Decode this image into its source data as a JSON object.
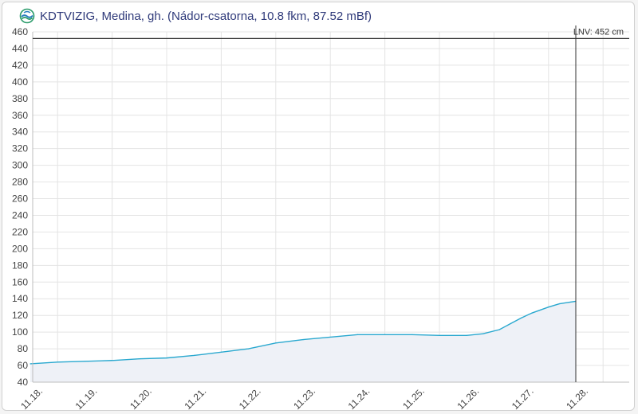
{
  "header": {
    "title": "KDTVIZIG, Medina, gh. (Nádor-csatorna, 10.8 fkm, 87.52 mBf)",
    "logo_icon": "kdtvizig-logo-icon"
  },
  "chart_data": {
    "type": "area",
    "title": "KDTVIZIG, Medina, gh. (Nádor-csatorna, 10.8 fkm, 87.52 mBf)",
    "xlabel": "",
    "ylabel": "",
    "x_ticks": [
      "11.18.",
      "11.19.",
      "11.20.",
      "11.21.",
      "11.22.",
      "11.23.",
      "11.24.",
      "11.25.",
      "11.26.",
      "11.27.",
      "11.28."
    ],
    "xlim": [
      0,
      10.8
    ],
    "ylim": [
      40,
      460
    ],
    "y_ticks": [
      40,
      60,
      80,
      100,
      120,
      140,
      160,
      180,
      200,
      220,
      240,
      260,
      280,
      300,
      320,
      340,
      360,
      380,
      400,
      420,
      440,
      460
    ],
    "grid": true,
    "series": [
      {
        "x": [
          0,
          0.5,
          1,
          1.5,
          2,
          2.5,
          3,
          3.5,
          4,
          4.5,
          5,
          5.5,
          6,
          6.5,
          7,
          7.5,
          8,
          8.3,
          8.6,
          8.8,
          9,
          9.2,
          9.5,
          9.7,
          9.9,
          10
        ],
        "y": [
          62,
          64,
          65,
          66,
          68,
          69,
          72,
          76,
          80,
          87,
          91,
          94,
          97,
          97,
          97,
          96,
          96,
          98,
          103,
          110,
          117,
          123,
          130,
          134,
          136,
          137
        ],
        "color": "#29a8cf",
        "fill": "#eef1f7"
      }
    ],
    "annotations": [
      {
        "type": "hline",
        "y": 452,
        "label": "LNV: 452 cm",
        "color": "#333333"
      },
      {
        "type": "vline",
        "x": 10,
        "color": "#333333"
      }
    ]
  }
}
